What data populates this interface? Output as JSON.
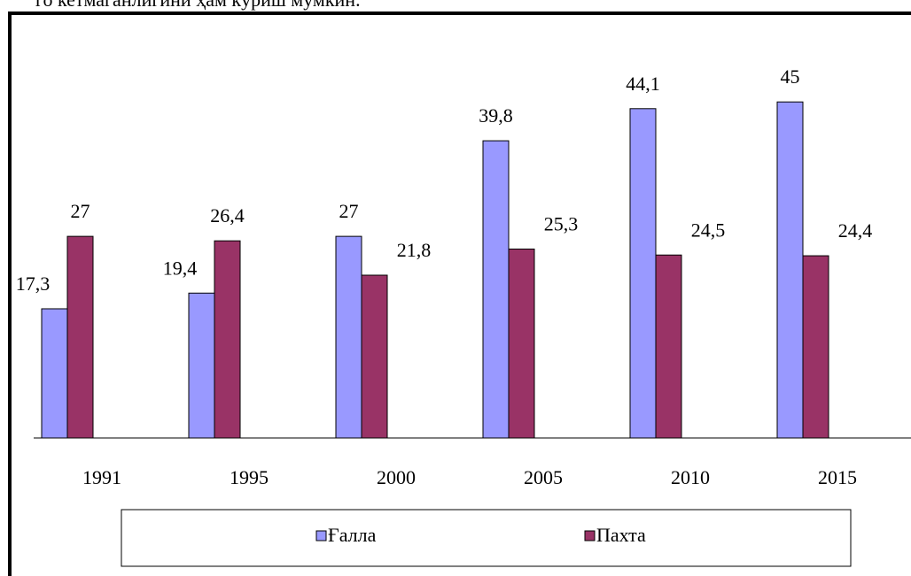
{
  "context_text": "го кетмаганлигини ҳам кўриш мумкин.",
  "chart_data": {
    "type": "bar",
    "categories": [
      "1991",
      "1995",
      "2000",
      "2005",
      "2010",
      "2015"
    ],
    "series": [
      {
        "name": "Ғалла",
        "color": "#9999ff",
        "values": [
          17.3,
          19.4,
          27,
          39.8,
          44.1,
          45
        ],
        "value_labels": [
          "17,3",
          "19,4",
          "27",
          "39,8",
          "44,1",
          "45"
        ]
      },
      {
        "name": "Пахта",
        "color": "#993366",
        "values": [
          27,
          26.4,
          21.8,
          25.3,
          24.5,
          24.4
        ],
        "value_labels": [
          "27",
          "26,4",
          "21,8",
          "25,3",
          "24,5",
          "24,4"
        ]
      }
    ],
    "ylim": [
      0,
      50
    ]
  }
}
